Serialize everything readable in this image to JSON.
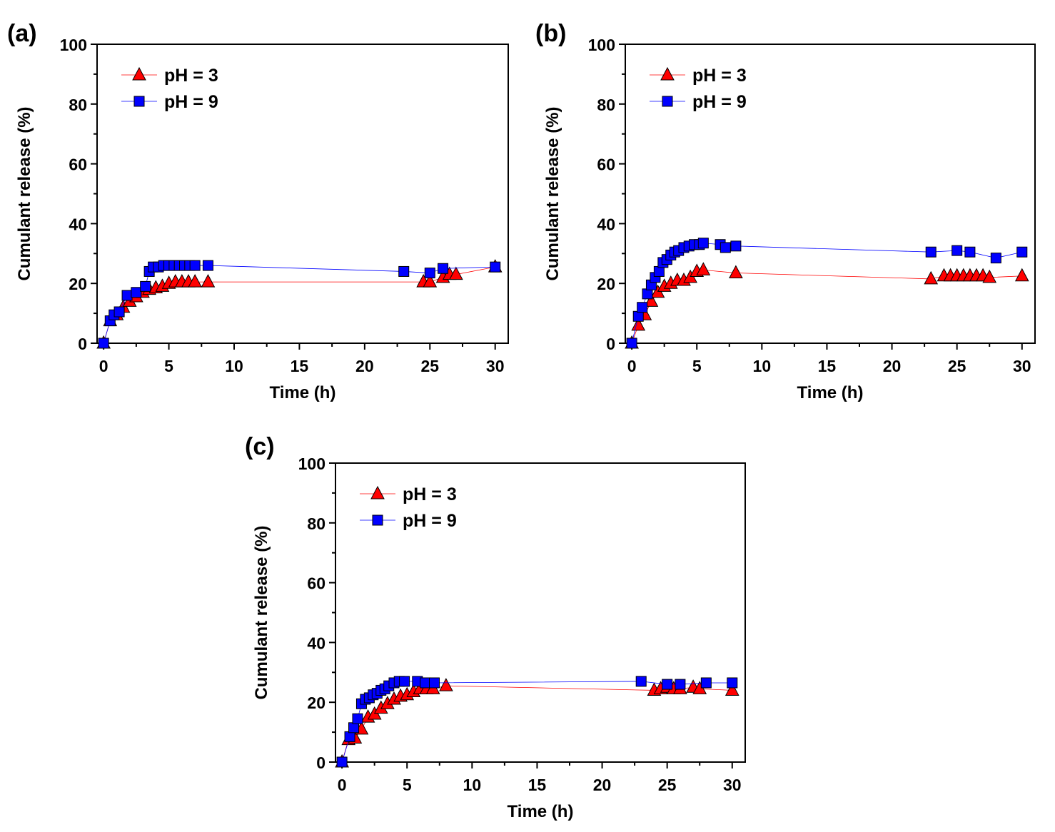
{
  "chart_data": [
    {
      "type": "scatter",
      "panel_label": "(a)",
      "xlabel": "Time (h)",
      "ylabel": "Cumulant release (%)",
      "xlim": [
        -0.5,
        31
      ],
      "ylim": [
        0,
        100
      ],
      "xticks": [
        "0",
        "5",
        "10",
        "15",
        "20",
        "25",
        "30"
      ],
      "yticks": [
        "0",
        "20",
        "40",
        "60",
        "80",
        "100"
      ],
      "legend_position": "top-left",
      "series": [
        {
          "name": "pH = 3",
          "marker": "triangle",
          "color": "#ff0000",
          "x": [
            0,
            0.5,
            1,
            1.5,
            2,
            2.5,
            3,
            3.5,
            4,
            4.5,
            5,
            5.5,
            6,
            6.5,
            7,
            8,
            24.5,
            25,
            26,
            26.5,
            27,
            30
          ],
          "y": [
            0,
            7.5,
            9.5,
            12,
            14,
            15.5,
            17,
            18,
            18.5,
            19,
            20,
            20.5,
            20.5,
            20.5,
            20.5,
            20.5,
            20.5,
            20.5,
            22,
            23,
            23,
            25.5
          ]
        },
        {
          "name": "pH = 9",
          "marker": "square",
          "color": "#0000ff",
          "x": [
            0,
            0.5,
            0.8,
            1.2,
            1.8,
            2.5,
            3.2,
            3.5,
            3.8,
            4.2,
            4.6,
            5,
            5.4,
            5.8,
            6.2,
            6.6,
            7,
            8,
            23,
            25,
            26,
            30
          ],
          "y": [
            0,
            7.5,
            9.5,
            10.5,
            16,
            17,
            19,
            24,
            25.5,
            25.5,
            26,
            26,
            26,
            26,
            26,
            26,
            26,
            26,
            24,
            23.5,
            25,
            25.5
          ]
        }
      ]
    },
    {
      "type": "scatter",
      "panel_label": "(b)",
      "xlabel": "Time (h)",
      "ylabel": "Cumulant release (%)",
      "xlim": [
        -0.5,
        31
      ],
      "ylim": [
        0,
        100
      ],
      "xticks": [
        "0",
        "5",
        "10",
        "15",
        "20",
        "25",
        "30"
      ],
      "yticks": [
        "0",
        "20",
        "40",
        "60",
        "80",
        "100"
      ],
      "legend_position": "top-left",
      "series": [
        {
          "name": "pH = 3",
          "marker": "triangle",
          "color": "#ff0000",
          "x": [
            0,
            0.5,
            1,
            1.5,
            2,
            2.5,
            3,
            3.5,
            4,
            4.5,
            5,
            5.5,
            8,
            23,
            24,
            24.5,
            25,
            25.5,
            26,
            26.5,
            27,
            27.5,
            30
          ],
          "y": [
            0,
            6,
            9.5,
            14,
            17,
            19,
            20,
            21,
            21,
            22,
            24,
            24.5,
            23.5,
            21.5,
            22.5,
            22.5,
            22.5,
            22.5,
            22.5,
            22.5,
            22.5,
            22,
            22.5
          ]
        },
        {
          "name": "pH = 9",
          "marker": "square",
          "color": "#0000ff",
          "x": [
            0,
            0.5,
            0.8,
            1.2,
            1.5,
            1.8,
            2.1,
            2.4,
            2.7,
            3,
            3.3,
            3.6,
            4,
            4.4,
            4.8,
            5.2,
            5.5,
            6.8,
            7.2,
            8,
            23,
            25,
            26,
            28,
            30
          ],
          "y": [
            0,
            9,
            12,
            16.5,
            19.5,
            22,
            24,
            27,
            28,
            29.5,
            30.5,
            31,
            32,
            32.5,
            33,
            33,
            33.5,
            33,
            32,
            32.5,
            30.5,
            31,
            30.5,
            28.5,
            30.5
          ]
        }
      ]
    },
    {
      "type": "scatter",
      "panel_label": "(c)",
      "xlabel": "Time (h)",
      "ylabel": "Cumulant release (%)",
      "xlim": [
        -0.5,
        31
      ],
      "ylim": [
        0,
        100
      ],
      "xticks": [
        "0",
        "5",
        "10",
        "15",
        "20",
        "25",
        "30"
      ],
      "yticks": [
        "0",
        "20",
        "40",
        "60",
        "80",
        "100"
      ],
      "legend_position": "top-left",
      "series": [
        {
          "name": "pH = 3",
          "marker": "triangle",
          "color": "#ff0000",
          "x": [
            0,
            0.5,
            1,
            1.5,
            2,
            2.5,
            3,
            3.5,
            4,
            4.5,
            5,
            5.5,
            6,
            6.5,
            7,
            8,
            24,
            24.5,
            25,
            25.5,
            26,
            27,
            27.5,
            30
          ],
          "y": [
            0,
            7.5,
            8,
            11,
            15,
            16,
            18,
            19.5,
            21,
            22,
            22.5,
            23.5,
            24.5,
            24.5,
            24.5,
            25.5,
            24,
            24.5,
            25,
            24.5,
            24.5,
            25,
            24.5,
            24
          ]
        },
        {
          "name": "pH = 9",
          "marker": "square",
          "color": "#0000ff",
          "x": [
            0,
            0.6,
            0.9,
            1.2,
            1.5,
            1.8,
            2.1,
            2.4,
            2.7,
            3,
            3.3,
            3.6,
            4,
            4.4,
            4.8,
            5.8,
            6.4,
            7.1,
            23,
            25,
            26,
            28,
            30
          ],
          "y": [
            0,
            8.5,
            11.5,
            14.5,
            19.5,
            21,
            21.5,
            22.5,
            23,
            24,
            24.5,
            25.5,
            26.5,
            27,
            27,
            27,
            26.5,
            26.5,
            27,
            26,
            26,
            26.5,
            26.5
          ]
        }
      ]
    }
  ]
}
